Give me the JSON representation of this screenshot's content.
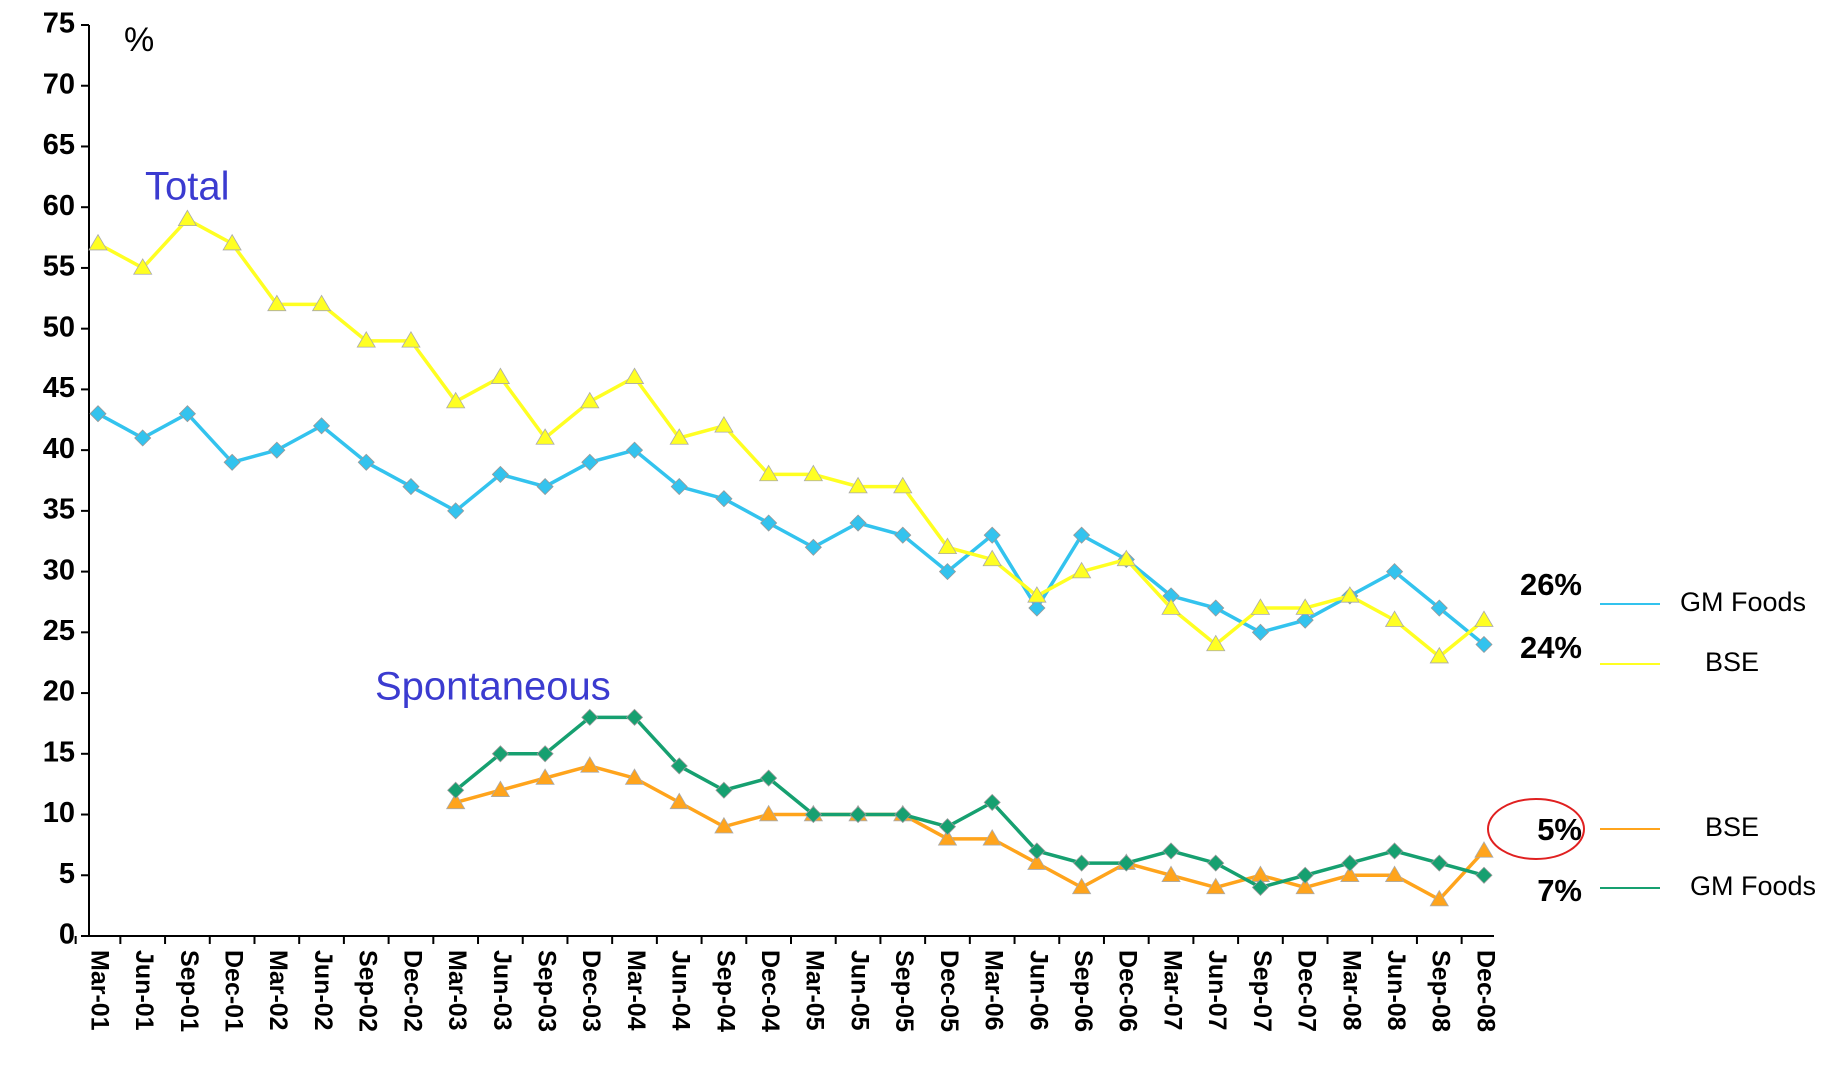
{
  "chart_data": {
    "type": "line",
    "y_label": "%",
    "annotations": [
      "Total",
      "Spontaneous"
    ],
    "end_labels": [
      "26%",
      "24%",
      "5%",
      "7%"
    ],
    "categories": [
      "Mar-01",
      "Jun-01",
      "Sep-01",
      "Dec-01",
      "Mar-02",
      "Jun-02",
      "Sep-02",
      "Dec-02",
      "Mar-03",
      "Jun-03",
      "Sep-03",
      "Dec-03",
      "Mar-04",
      "Jun-04",
      "Sep-04",
      "Dec-04",
      "Mar-05",
      "Jun-05",
      "Sep-05",
      "Dec-05",
      "Mar-06",
      "Jun-06",
      "Sep-06",
      "Dec-06",
      "Mar-07",
      "Jun-07",
      "Sep-07",
      "Dec-07",
      "Mar-08",
      "Jun-08",
      "Sep-08",
      "Dec-08"
    ],
    "series": [
      {
        "name": "GM Foods",
        "color": "#33c3ee",
        "marker": "diamond",
        "values": [
          43,
          41,
          43,
          39,
          40,
          42,
          39,
          37,
          35,
          38,
          37,
          39,
          40,
          37,
          36,
          34,
          32,
          34,
          33,
          30,
          33,
          27,
          33,
          31,
          28,
          27,
          25,
          26,
          28,
          30,
          27,
          24
        ]
      },
      {
        "name": "BSE",
        "color": "#ffff22",
        "marker": "triangle",
        "values": [
          57,
          55,
          59,
          57,
          52,
          52,
          49,
          49,
          44,
          46,
          41,
          44,
          46,
          41,
          42,
          38,
          38,
          37,
          37,
          32,
          31,
          28,
          30,
          31,
          27,
          24,
          27,
          27,
          28,
          26,
          23,
          26
        ]
      },
      {
        "name": "BSE",
        "color": "#ffa41c",
        "marker": "triangle",
        "values": [
          null,
          null,
          null,
          null,
          null,
          null,
          null,
          null,
          11,
          12,
          13,
          14,
          13,
          11,
          9,
          10,
          10,
          10,
          10,
          8,
          8,
          6,
          4,
          6,
          5,
          4,
          5,
          4,
          5,
          5,
          3,
          7
        ]
      },
      {
        "name": "GM Foods",
        "color": "#16a070",
        "marker": "diamond",
        "values": [
          null,
          null,
          null,
          null,
          null,
          null,
          null,
          null,
          12,
          15,
          15,
          18,
          18,
          14,
          12,
          13,
          10,
          10,
          10,
          9,
          11,
          7,
          6,
          6,
          7,
          6,
          4,
          5,
          6,
          7,
          6,
          5
        ]
      }
    ],
    "ylim": [
      0,
      75
    ],
    "yticks": [
      0,
      5,
      10,
      15,
      20,
      25,
      30,
      35,
      40,
      45,
      50,
      55,
      60,
      65,
      70,
      75
    ],
    "grid": false
  }
}
